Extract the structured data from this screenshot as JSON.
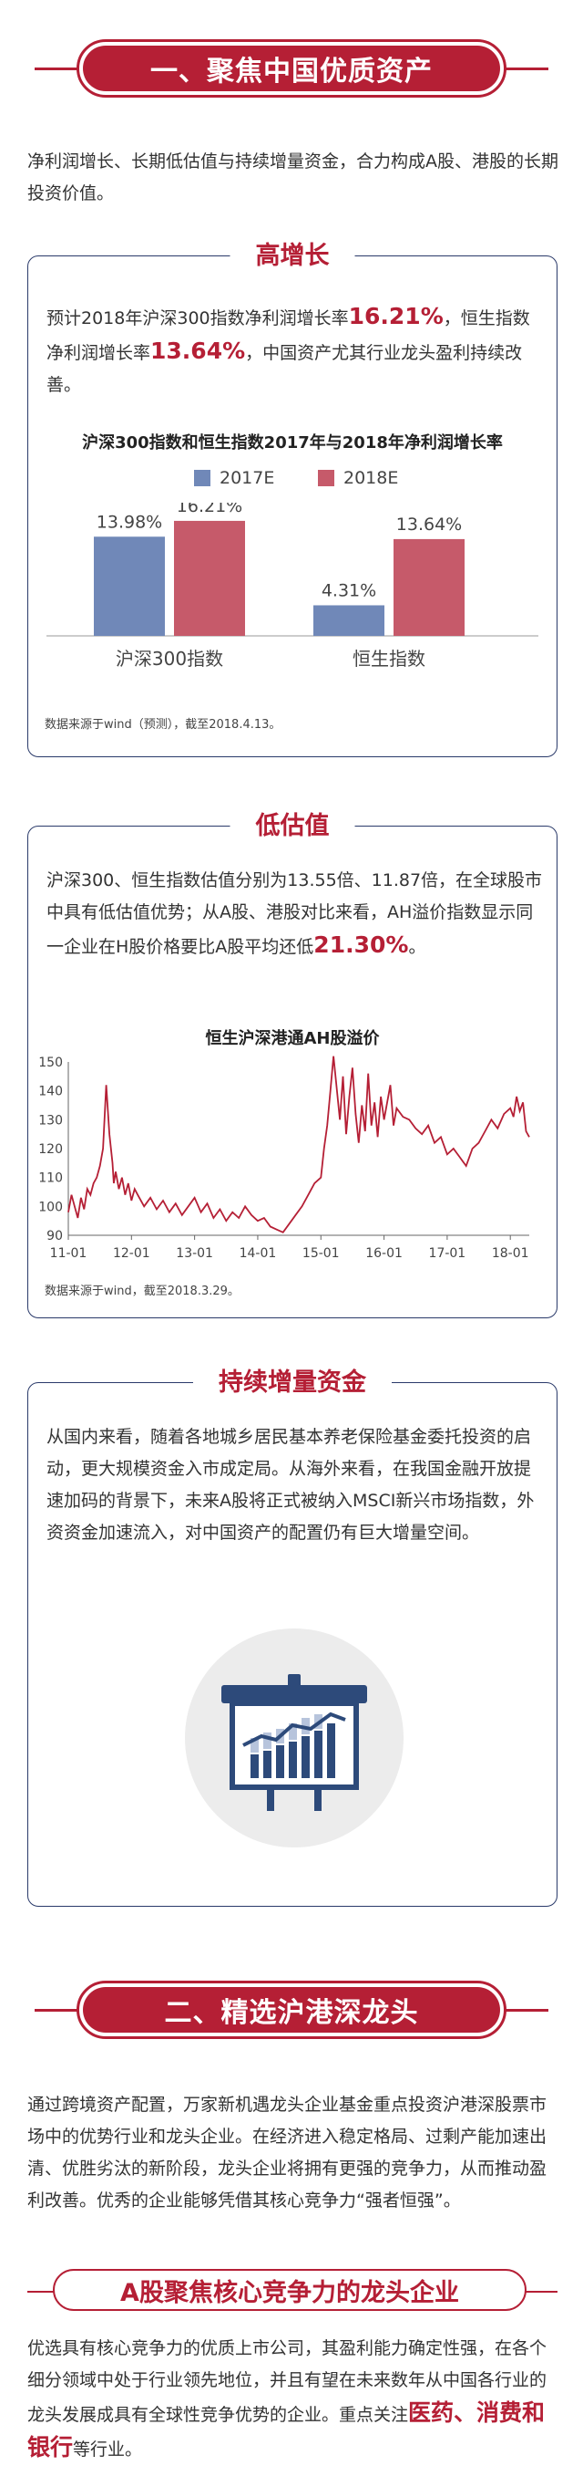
{
  "section1": {
    "banner": "一、聚焦中国优质资产",
    "intro": "净利润增长、长期低估值与持续增量资金，合力构成A股、港股的长期投资价值。"
  },
  "growth_card": {
    "title": "高增长",
    "text_part1": "预计2018年沪深300指数净利润增长率",
    "hl1": "16.21%",
    "text_part2": "，恒生指数净利润增长率",
    "hl2": "13.64%",
    "text_part3": "，中国资产尤其行业龙头盈利持续改善。",
    "source": "数据来源于wind（预测），截至2018.4.13。"
  },
  "valuation_card": {
    "title": "低估值",
    "text_part1": "沪深300、恒生指数估值分别为13.55倍、11.87倍，在全球股市中具有低估值优势；从A股、港股对比来看，AH溢价指数显示同一企业在H股价格要比A股平均还低",
    "hl1": "21.30%",
    "text_part2": "。",
    "source": "数据来源于wind，截至2018.3.29。"
  },
  "funds_card": {
    "title": "持续增量资金",
    "text": "从国内来看，随着各地城乡居民基本养老保险基金委托投资的启动，更大规模资金入市成定局。从海外来看，在我国金融开放提速加码的背景下，未来A股将正式被纳入MSCI新兴市场指数，外资资金加速流入，对中国资产的配置仍有巨大增量空间。",
    "icon": "presentation-board-chart-icon"
  },
  "section2": {
    "banner": "二、精选沪港深龙头",
    "intro": "通过跨境资产配置，万家新机遇龙头企业基金重点投资沪港深股票市场中的优势行业和龙头企业。在经济进入稳定格局、过剩产能加速出清、优胜劣汰的新阶段，龙头企业将拥有更强的竞争力，从而推动盈利改善。优秀的企业能够凭借其核心竞争力“强者恒强”。",
    "sub_title": "A股聚焦核心竞争力的龙头企业",
    "sub_text_part1": "优选具有核心竞争力的优质上市公司，其盈利能力确定性强，在各个细分领域中处于行业领先地位，并且有望在未来数年从中国各行业的龙头发展成具有全球性竞争优势的企业。重点关注",
    "sub_hl": "医药、消费和银行",
    "sub_text_part2": "等行业。"
  },
  "colors": {
    "accent": "#b51f35",
    "blue": "#7088b8",
    "red": "#c65a6a",
    "navy": "#2a3a6a"
  },
  "chart_data": [
    {
      "type": "bar",
      "title": "沪深300指数和恒生指数2017年与2018年净利润增长率",
      "categories": [
        "沪深300指数",
        "恒生指数"
      ],
      "series": [
        {
          "name": "2017E",
          "values": [
            13.98,
            4.31
          ],
          "labels": [
            "13.98%",
            "4.31%"
          ]
        },
        {
          "name": "2018E",
          "values": [
            16.21,
            13.64
          ],
          "labels": [
            "16.21%",
            "13.64%"
          ]
        }
      ],
      "ylim": [
        0,
        18
      ],
      "grid": false,
      "legend": "top"
    },
    {
      "type": "line",
      "title": "恒生沪深港通AH股溢价",
      "xticks": [
        "11-01",
        "12-01",
        "13-01",
        "14-01",
        "15-01",
        "16-01",
        "17-01",
        "18-01"
      ],
      "yticks": [
        90,
        100,
        110,
        120,
        130,
        140,
        150
      ],
      "ylim": [
        90,
        150
      ],
      "xlim": [
        2011.0,
        2018.3
      ],
      "series": [
        {
          "x": [
            2011.0,
            2011.05,
            2011.1,
            2011.15,
            2011.2,
            2011.25,
            2011.3,
            2011.35,
            2011.4,
            2011.45,
            2011.5,
            2011.55,
            2011.6,
            2011.65,
            2011.7,
            2011.72,
            2011.75,
            2011.8,
            2011.85,
            2011.9,
            2011.95,
            2012.0,
            2012.05,
            2012.1,
            2012.2,
            2012.3,
            2012.4,
            2012.5,
            2012.6,
            2012.7,
            2012.8,
            2012.9,
            2013.0,
            2013.1,
            2013.2,
            2013.3,
            2013.4,
            2013.5,
            2013.6,
            2013.7,
            2013.8,
            2013.9,
            2014.0,
            2014.1,
            2014.2,
            2014.3,
            2014.4,
            2014.5,
            2014.6,
            2014.7,
            2014.8,
            2014.9,
            2015.0,
            2015.05,
            2015.1,
            2015.15,
            2015.2,
            2015.3,
            2015.35,
            2015.4,
            2015.45,
            2015.5,
            2015.55,
            2015.6,
            2015.65,
            2015.7,
            2015.75,
            2015.8,
            2015.85,
            2015.9,
            2015.95,
            2016.0,
            2016.1,
            2016.15,
            2016.2,
            2016.3,
            2016.4,
            2016.5,
            2016.6,
            2016.7,
            2016.8,
            2016.9,
            2017.0,
            2017.1,
            2017.2,
            2017.3,
            2017.4,
            2017.5,
            2017.6,
            2017.7,
            2017.8,
            2017.9,
            2018.0,
            2018.05,
            2018.1,
            2018.15,
            2018.2,
            2018.25,
            2018.3
          ],
          "y": [
            98,
            104,
            100,
            96,
            103,
            99,
            106,
            104,
            108,
            110,
            114,
            120,
            142,
            125,
            115,
            108,
            112,
            106,
            110,
            104,
            108,
            102,
            106,
            104,
            100,
            103,
            99,
            102,
            98,
            101,
            97,
            100,
            103,
            98,
            101,
            96,
            99,
            95,
            98,
            96,
            100,
            97,
            95,
            96,
            93,
            92,
            91,
            94,
            97,
            100,
            104,
            108,
            110,
            120,
            128,
            140,
            152,
            130,
            145,
            125,
            138,
            148,
            132,
            122,
            135,
            126,
            146,
            128,
            136,
            124,
            138,
            130,
            142,
            128,
            134,
            131,
            130,
            127,
            125,
            128,
            122,
            124,
            118,
            120,
            117,
            114,
            120,
            122,
            126,
            130,
            127,
            132,
            134,
            131,
            138,
            133,
            136,
            126,
            124
          ]
        }
      ]
    }
  ]
}
